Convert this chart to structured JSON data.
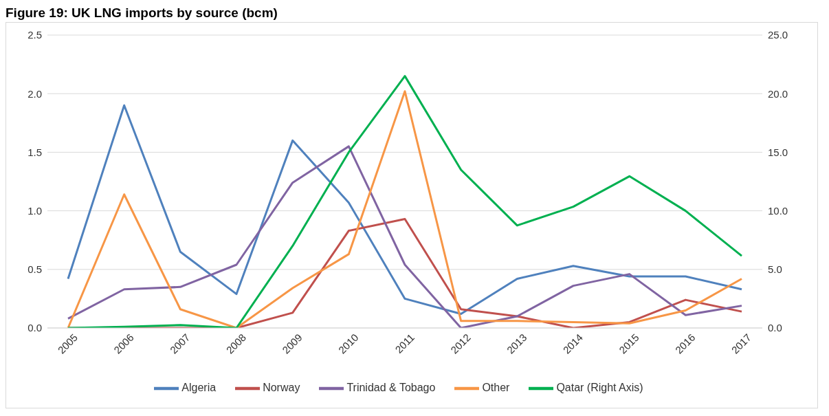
{
  "chart_data": {
    "type": "line",
    "title": "Figure 19: UK LNG imports by source (bcm)",
    "categories": [
      "2005",
      "2006",
      "2007",
      "2008",
      "2009",
      "2010",
      "2011",
      "2012",
      "2013",
      "2014",
      "2015",
      "2016",
      "2017"
    ],
    "series": [
      {
        "name": "Algeria",
        "color": "#4f81bd",
        "values": [
          0.42,
          1.9,
          0.65,
          0.29,
          1.6,
          1.07,
          0.25,
          0.12,
          0.42,
          0.53,
          0.44,
          0.44,
          0.33
        ]
      },
      {
        "name": "Norway",
        "color": "#c0504d",
        "values": [
          0,
          0,
          0,
          0,
          0.13,
          0.83,
          0.93,
          0.16,
          0.1,
          0,
          0.05,
          0.24,
          0.14
        ]
      },
      {
        "name": "Trinidad & Tobago",
        "color": "#8064a2",
        "values": [
          0.08,
          0.33,
          0.35,
          0.54,
          1.24,
          1.55,
          0.54,
          0,
          0.1,
          0.36,
          0.46,
          0.11,
          0.19
        ]
      },
      {
        "name": "Other",
        "color": "#f79646",
        "values": [
          0,
          1.14,
          0.16,
          0,
          0.34,
          0.63,
          2.02,
          0.06,
          0.06,
          0.05,
          0.04,
          0.15,
          0.42
        ]
      },
      {
        "name": "Qatar (Right Axis)",
        "color": "#00b050",
        "axis": "y2",
        "values": [
          0,
          0.1,
          0.25,
          0,
          7.0,
          15.0,
          21.5,
          13.5,
          8.75,
          10.35,
          12.95,
          10.0,
          6.15
        ]
      }
    ],
    "ylim": [
      0,
      2.5
    ],
    "yticks": [
      {
        "value": 0,
        "label": "0.0"
      },
      {
        "value": 0.5,
        "label": "0.5"
      },
      {
        "value": 1,
        "label": "1.0"
      },
      {
        "value": 1.5,
        "label": "1.5"
      },
      {
        "value": 2,
        "label": "2.0"
      },
      {
        "value": 2.5,
        "label": "2.5"
      }
    ],
    "y2lim": [
      0,
      25
    ],
    "y2ticks": [
      {
        "value": 0,
        "label": "0.0"
      },
      {
        "value": 5,
        "label": "5.0"
      },
      {
        "value": 10,
        "label": "10.0"
      },
      {
        "value": 15,
        "label": "15.0"
      },
      {
        "value": 20,
        "label": "20.0"
      },
      {
        "value": 25,
        "label": "25.0"
      }
    ],
    "grid": "y",
    "legend": "bottom",
    "marker": "none",
    "line_style": "solid"
  }
}
